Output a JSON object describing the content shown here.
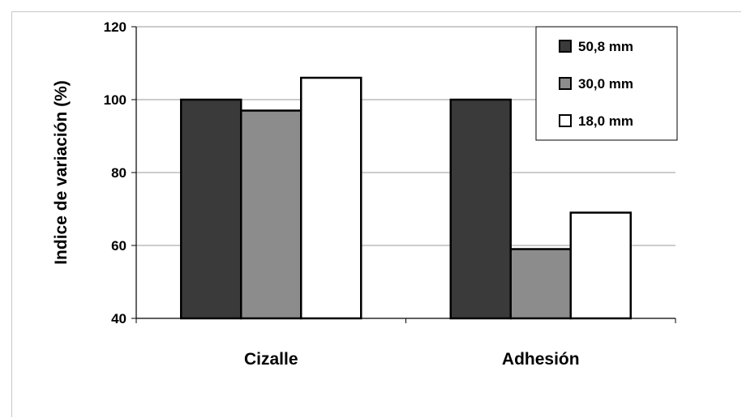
{
  "chart_data": {
    "type": "bar",
    "categories": [
      "Cizalle",
      "Adhesión"
    ],
    "series": [
      {
        "name": "50,8 mm",
        "values": [
          100,
          100
        ],
        "color": "#3a3a3a"
      },
      {
        "name": "30,0 mm",
        "values": [
          97,
          59
        ],
        "color": "#8c8c8c"
      },
      {
        "name": "18,0 mm",
        "values": [
          106,
          69
        ],
        "color": "#ffffff"
      }
    ],
    "title": "",
    "xlabel": "",
    "ylabel": "Indice de variación  (%)",
    "ylim": [
      40,
      120
    ],
    "yticks": [
      "40",
      "60",
      "80",
      "100",
      "120"
    ],
    "grid": true,
    "legend_position": "top-right"
  }
}
